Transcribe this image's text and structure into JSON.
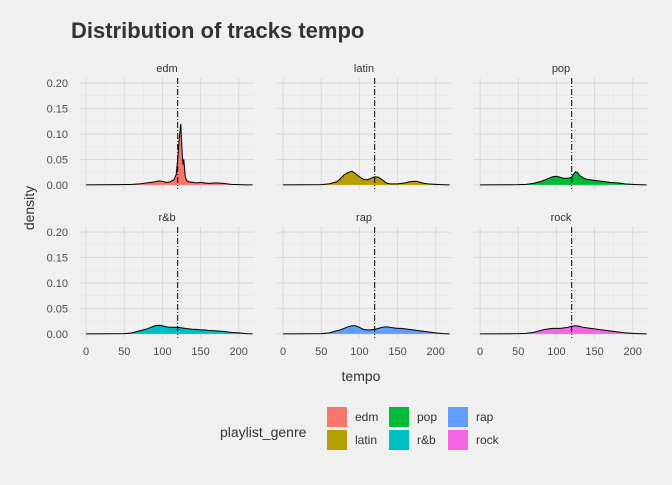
{
  "chart_data": {
    "type": "area",
    "title": "Distribution of tracks tempo",
    "xlabel": "tempo",
    "ylabel": "density",
    "xlim": [
      -8,
      220
    ],
    "ylim": [
      -0.008,
      0.21
    ],
    "xticks": [
      0,
      50,
      100,
      150,
      200
    ],
    "yticks": [
      0.0,
      0.05,
      0.1,
      0.15,
      0.2
    ],
    "ytick_labels": [
      "0.00",
      "0.05",
      "0.10",
      "0.15",
      "0.20"
    ],
    "vline": 120,
    "grid": true,
    "legend": {
      "title": "playlist_genre",
      "placement": "bottom",
      "entries": [
        {
          "name": "edm",
          "color": "#F8766D"
        },
        {
          "name": "latin",
          "color": "#B79F00"
        },
        {
          "name": "pop",
          "color": "#00BA38"
        },
        {
          "name": "r&b",
          "color": "#00BFC4"
        },
        {
          "name": "rap",
          "color": "#619CFF"
        },
        {
          "name": "rock",
          "color": "#F564E3"
        }
      ]
    },
    "series": [
      {
        "name": "edm",
        "color": "#F8766D",
        "x": [
          0,
          40,
          60,
          70,
          80,
          90,
          95,
          100,
          105,
          110,
          115,
          118,
          120,
          122,
          124,
          125,
          126,
          127,
          128,
          130,
          132,
          135,
          140,
          145,
          150,
          155,
          160,
          170,
          180,
          190,
          200,
          210,
          218
        ],
        "y": [
          0,
          0.0005,
          0.001,
          0.002,
          0.004,
          0.006,
          0.008,
          0.007,
          0.005,
          0.006,
          0.01,
          0.02,
          0.05,
          0.09,
          0.12,
          0.09,
          0.06,
          0.04,
          0.05,
          0.015,
          0.008,
          0.006,
          0.005,
          0.004,
          0.005,
          0.004,
          0.003,
          0.004,
          0.003,
          0.001,
          0.0005,
          0.0002,
          0
        ]
      },
      {
        "name": "latin",
        "color": "#B79F00",
        "x": [
          0,
          50,
          60,
          70,
          75,
          80,
          85,
          88,
          90,
          92,
          95,
          100,
          105,
          110,
          115,
          120,
          125,
          130,
          135,
          140,
          145,
          150,
          155,
          160,
          165,
          170,
          175,
          180,
          185,
          190,
          200,
          210,
          218
        ],
        "y": [
          0,
          0.0005,
          0.002,
          0.006,
          0.012,
          0.02,
          0.024,
          0.026,
          0.027,
          0.025,
          0.022,
          0.016,
          0.011,
          0.01,
          0.013,
          0.016,
          0.015,
          0.01,
          0.004,
          0.002,
          0.002,
          0.002,
          0.003,
          0.004,
          0.006,
          0.007,
          0.007,
          0.005,
          0.003,
          0.002,
          0.001,
          0.0003,
          0
        ]
      },
      {
        "name": "pop",
        "color": "#00BA38",
        "x": [
          0,
          50,
          60,
          70,
          75,
          80,
          85,
          90,
          95,
          100,
          105,
          110,
          115,
          120,
          123,
          125,
          128,
          130,
          135,
          140,
          145,
          150,
          155,
          160,
          170,
          180,
          190,
          200,
          210,
          218
        ],
        "y": [
          0,
          0.0005,
          0.001,
          0.003,
          0.005,
          0.007,
          0.01,
          0.013,
          0.016,
          0.017,
          0.015,
          0.013,
          0.013,
          0.015,
          0.022,
          0.026,
          0.024,
          0.019,
          0.014,
          0.011,
          0.01,
          0.009,
          0.008,
          0.007,
          0.005,
          0.004,
          0.002,
          0.001,
          0.0003,
          0
        ]
      },
      {
        "name": "r&b",
        "color": "#00BFC4",
        "x": [
          0,
          50,
          60,
          65,
          70,
          75,
          80,
          85,
          90,
          95,
          100,
          105,
          110,
          115,
          120,
          125,
          130,
          135,
          140,
          145,
          150,
          155,
          160,
          170,
          180,
          190,
          200,
          210,
          218
        ],
        "y": [
          0,
          0.0005,
          0.002,
          0.004,
          0.006,
          0.008,
          0.01,
          0.013,
          0.016,
          0.017,
          0.016,
          0.014,
          0.013,
          0.013,
          0.013,
          0.012,
          0.011,
          0.01,
          0.009,
          0.009,
          0.008,
          0.008,
          0.007,
          0.006,
          0.005,
          0.003,
          0.002,
          0.0005,
          0
        ]
      },
      {
        "name": "rap",
        "color": "#619CFF",
        "x": [
          0,
          50,
          60,
          65,
          70,
          75,
          80,
          85,
          90,
          95,
          100,
          105,
          110,
          115,
          120,
          125,
          130,
          135,
          140,
          145,
          150,
          155,
          160,
          170,
          180,
          190,
          200,
          210,
          218
        ],
        "y": [
          0,
          0.0005,
          0.002,
          0.004,
          0.006,
          0.008,
          0.011,
          0.014,
          0.016,
          0.016,
          0.013,
          0.009,
          0.008,
          0.008,
          0.009,
          0.011,
          0.013,
          0.014,
          0.013,
          0.012,
          0.011,
          0.011,
          0.01,
          0.008,
          0.006,
          0.004,
          0.002,
          0.0005,
          0
        ]
      },
      {
        "name": "rock",
        "color": "#F564E3",
        "x": [
          0,
          50,
          60,
          70,
          75,
          80,
          85,
          90,
          95,
          100,
          105,
          110,
          115,
          120,
          125,
          130,
          135,
          140,
          145,
          150,
          155,
          160,
          170,
          180,
          190,
          200,
          210,
          218
        ],
        "y": [
          0,
          0.0005,
          0.001,
          0.003,
          0.005,
          0.007,
          0.009,
          0.01,
          0.011,
          0.011,
          0.011,
          0.012,
          0.013,
          0.015,
          0.016,
          0.015,
          0.013,
          0.012,
          0.011,
          0.01,
          0.009,
          0.008,
          0.006,
          0.004,
          0.002,
          0.001,
          0.0003,
          0
        ]
      }
    ]
  }
}
